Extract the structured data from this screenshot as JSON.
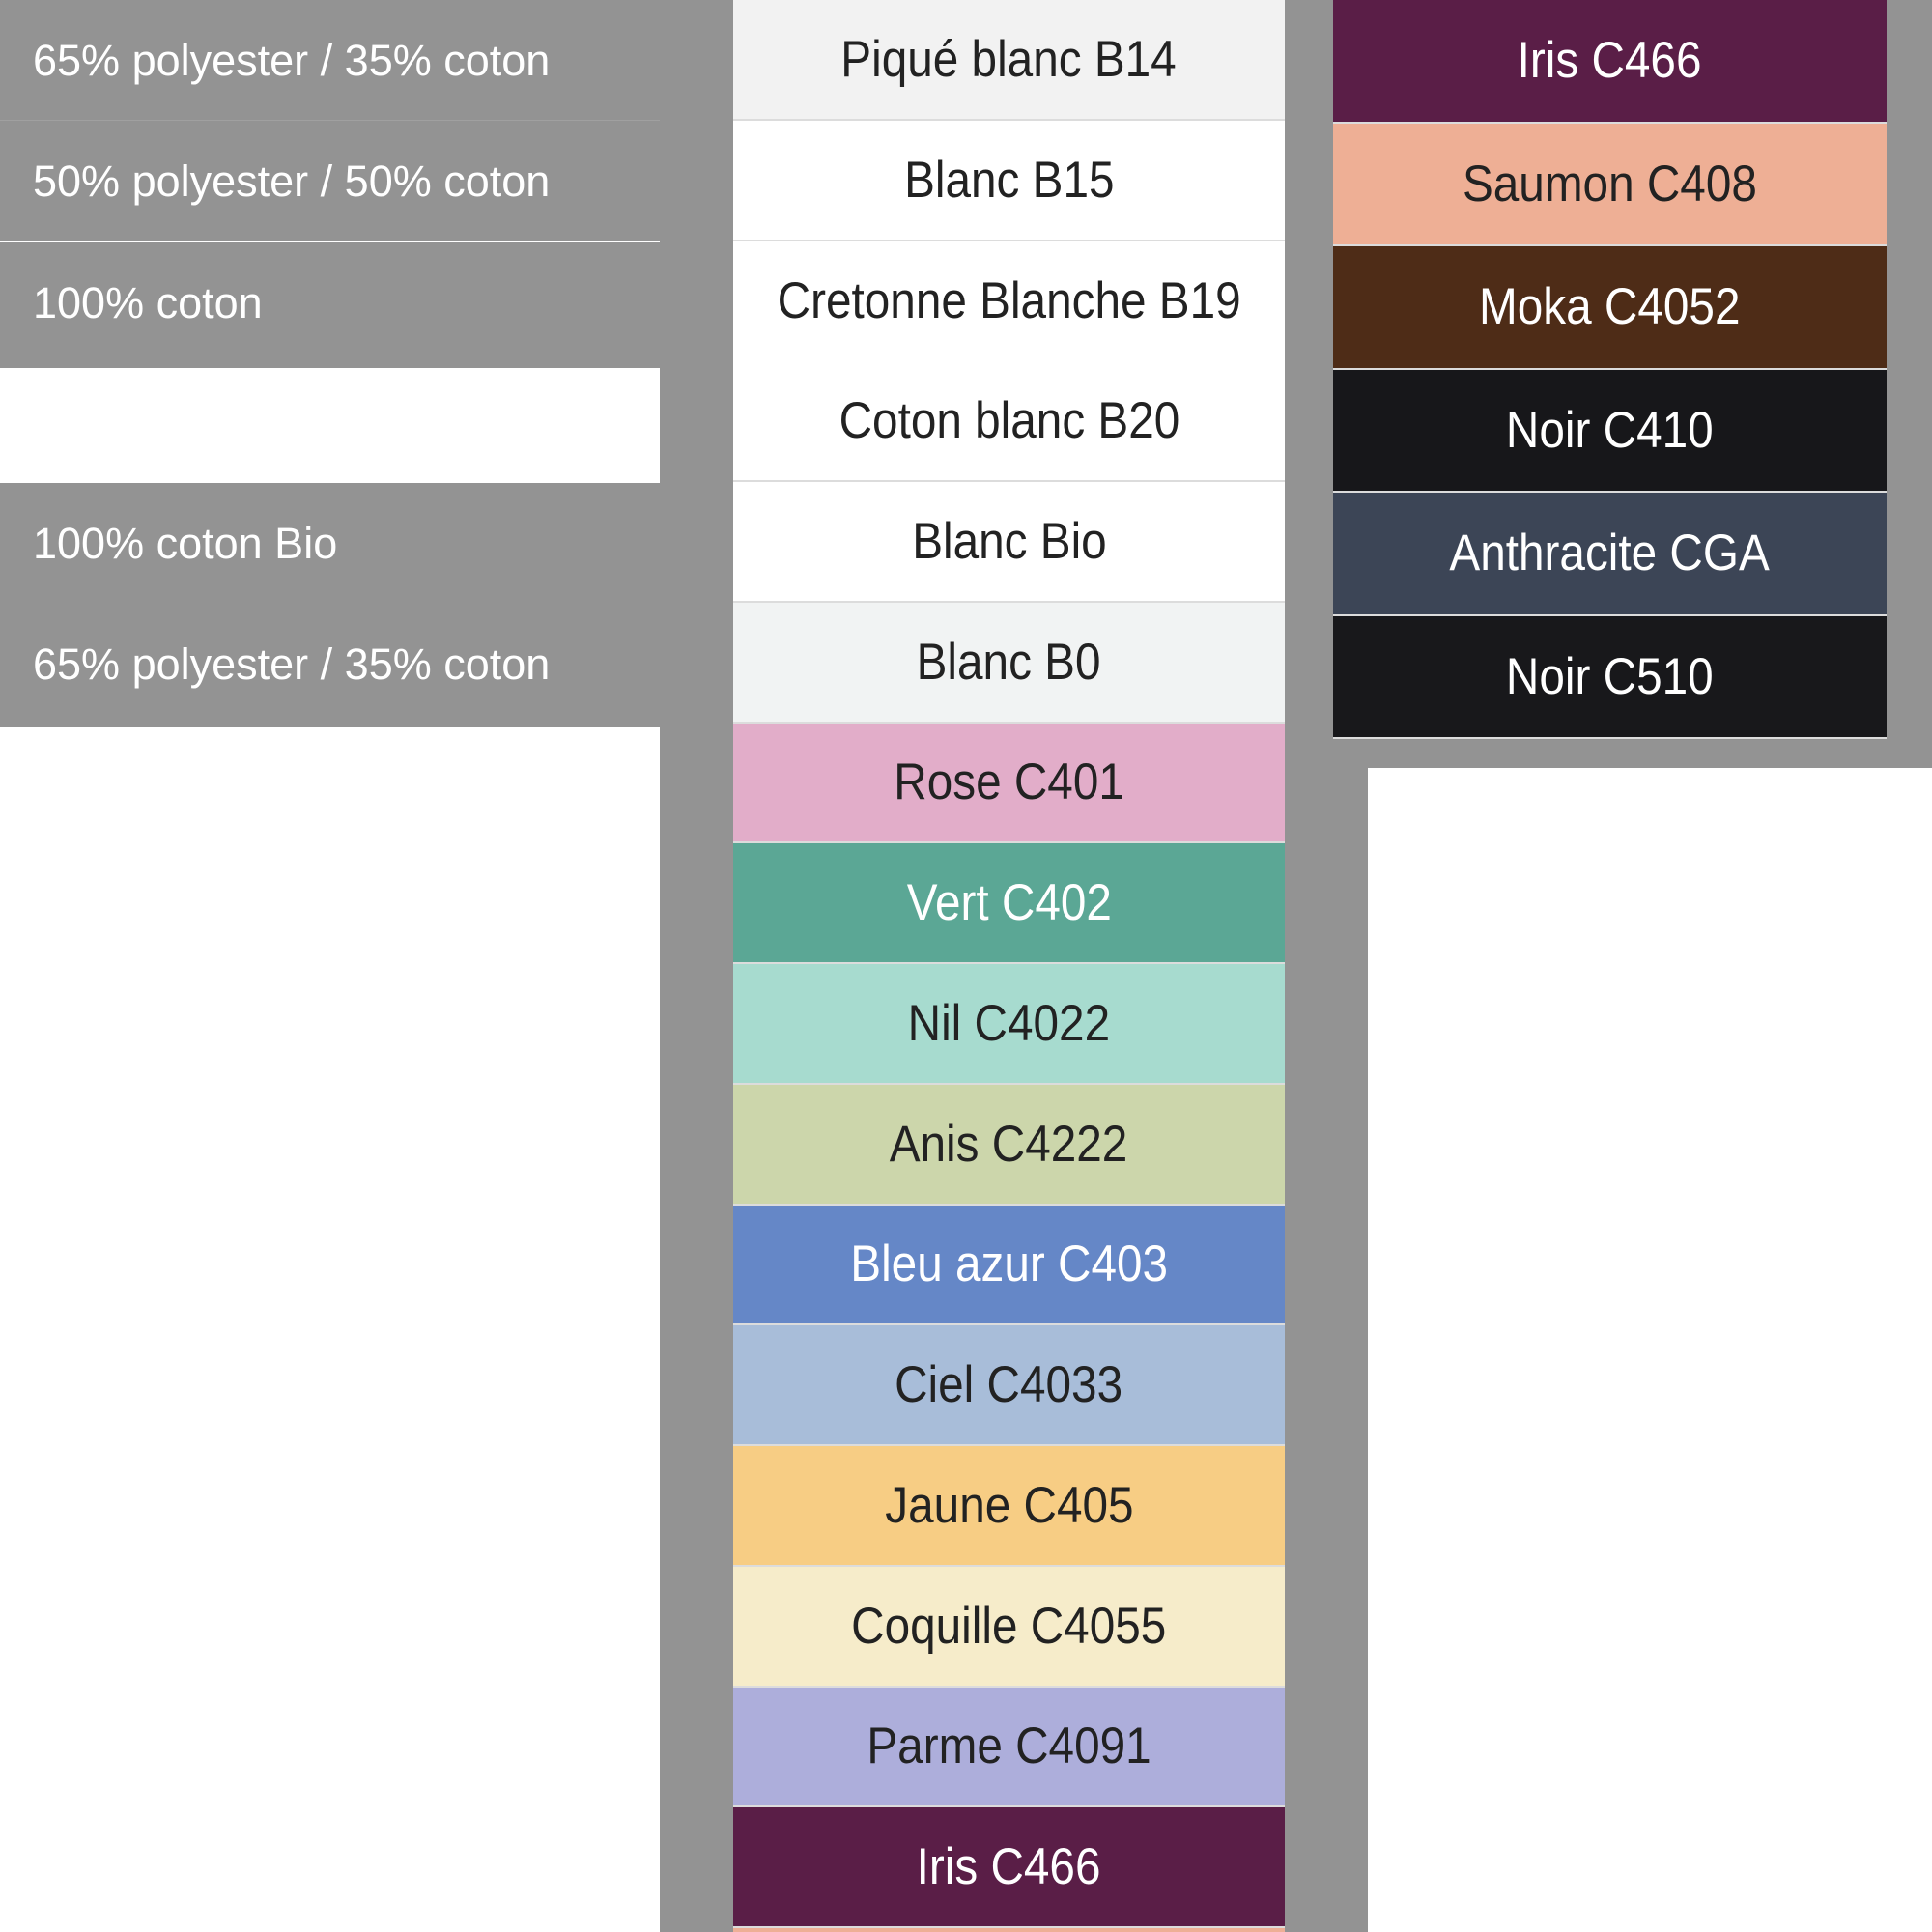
{
  "compositions": [
    "65% polyester / 35% coton",
    "50% polyester / 50% coton",
    "100% coton",
    "",
    "100% coton Bio",
    "65% polyester / 35% coton"
  ],
  "middle_swatches": [
    {
      "label": "Piqué blanc B14",
      "color": "#f2f2f2",
      "text_color": "#222222"
    },
    {
      "label": "Blanc B15",
      "color": "#ffffff",
      "text_color": "#222222"
    },
    {
      "label": "Cretonne Blanche B19",
      "color": "#ffffff",
      "text_color": "#222222"
    },
    {
      "label": "Coton blanc B20",
      "color": "#ffffff",
      "text_color": "#222222"
    },
    {
      "label": "Blanc Bio",
      "color": "#ffffff",
      "text_color": "#222222"
    },
    {
      "label": "Blanc B0",
      "color": "#f1f3f3",
      "text_color": "#222222"
    },
    {
      "label": "Rose C401",
      "color": "#e2adc9",
      "text_color": "#222222"
    },
    {
      "label": "Vert C402",
      "color": "#5ba795",
      "text_color": "#ffffff"
    },
    {
      "label": "Nil C4022",
      "color": "#a7dbcf",
      "text_color": "#222222"
    },
    {
      "label": "Anis C4222",
      "color": "#ccd6ab",
      "text_color": "#222222"
    },
    {
      "label": "Bleu azur C403",
      "color": "#6587c7",
      "text_color": "#ffffff"
    },
    {
      "label": "Ciel C4033",
      "color": "#a8bdd9",
      "text_color": "#222222"
    },
    {
      "label": "Jaune C405",
      "color": "#f7cd84",
      "text_color": "#222222"
    },
    {
      "label": "Coquille C4055",
      "color": "#f6ecca",
      "text_color": "#222222"
    },
    {
      "label": "Parme C4091",
      "color": "#adaedb",
      "text_color": "#222222"
    },
    {
      "label": "Iris C466",
      "color": "#5a1e47",
      "text_color": "#ffffff"
    }
  ],
  "right_swatches": [
    {
      "label": "Iris C466",
      "color": "#5a1e47",
      "text_color": "#ffffff"
    },
    {
      "label": "Saumon C408",
      "color": "#eeaf95",
      "text_color": "#222222"
    },
    {
      "label": "Moka C4052",
      "color": "#4e2c17",
      "text_color": "#ffffff"
    },
    {
      "label": "Noir C410",
      "color": "#17171a",
      "text_color": "#ffffff"
    },
    {
      "label": "Anthracite CGA",
      "color": "#3c4556",
      "text_color": "#ffffff"
    },
    {
      "label": "Noir C510",
      "color": "#18181b",
      "text_color": "#ffffff"
    }
  ],
  "colors": {
    "background_gray": "#939393",
    "next_swatch_edge": "#eeaf95"
  }
}
